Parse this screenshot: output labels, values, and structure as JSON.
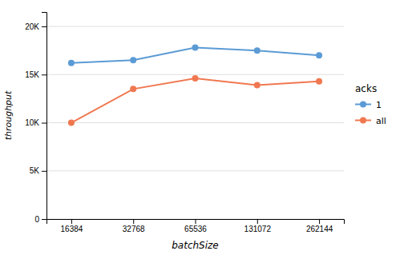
{
  "chart_data": {
    "type": "line",
    "categories": [
      "16384",
      "32768",
      "65536",
      "131072",
      "262144"
    ],
    "series": [
      {
        "name": "1",
        "color": "#5B9BD5",
        "marker": "circle",
        "values": [
          16200,
          16500,
          17800,
          17500,
          17000
        ]
      },
      {
        "name": "all",
        "color": "#F07850",
        "marker": "circle",
        "values": [
          10000,
          13500,
          14600,
          13900,
          14300
        ]
      }
    ],
    "xlabel": "batchSize",
    "ylabel": "throughput",
    "legend_title": "acks",
    "legend": "right",
    "ylim": [
      0,
      21500
    ],
    "yticks": [
      0,
      {
        "value": 5000,
        "label": "5K"
      },
      {
        "value": 10000,
        "label": "10K"
      },
      {
        "value": 15000,
        "label": "15K"
      },
      {
        "value": 20000,
        "label": "20K"
      }
    ],
    "grid": true
  }
}
